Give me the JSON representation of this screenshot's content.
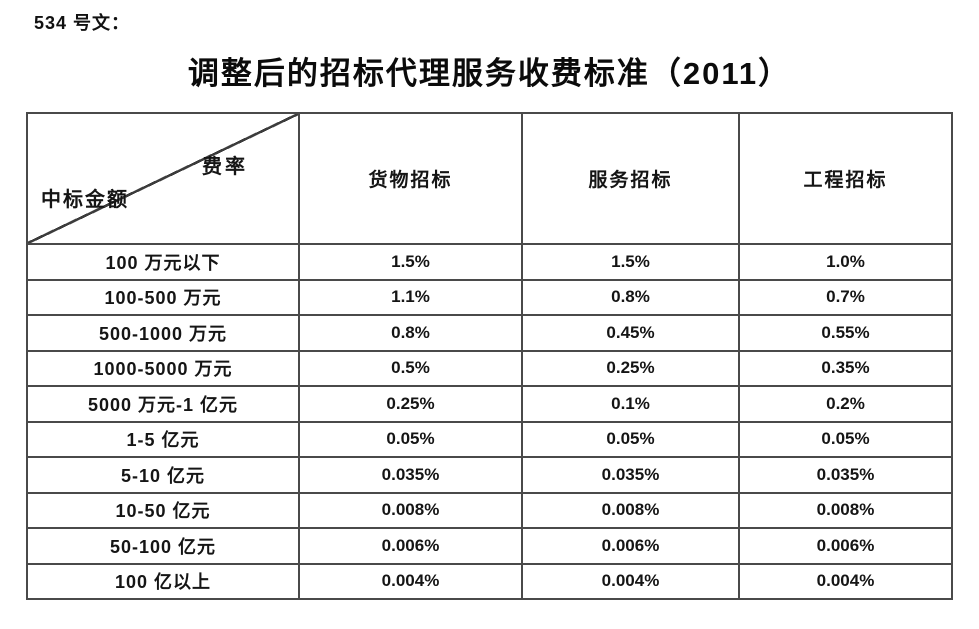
{
  "doc_label": "534 号文：",
  "title": "调整后的招标代理服务收费标准（2011）",
  "table": {
    "corner_top_right": "费率",
    "corner_bottom_left": "中标金额",
    "columns": [
      "货物招标",
      "服务招标",
      "工程招标"
    ],
    "rows": [
      {
        "label": "100 万元以下",
        "values": [
          "1.5%",
          "1.5%",
          "1.0%"
        ]
      },
      {
        "label": "100-500 万元",
        "values": [
          "1.1%",
          "0.8%",
          "0.7%"
        ]
      },
      {
        "label": "500-1000 万元",
        "values": [
          "0.8%",
          "0.45%",
          "0.55%"
        ]
      },
      {
        "label": "1000-5000 万元",
        "values": [
          "0.5%",
          "0.25%",
          "0.35%"
        ]
      },
      {
        "label": "5000 万元-1 亿元",
        "values": [
          "0.25%",
          "0.1%",
          "0.2%"
        ]
      },
      {
        "label": "1-5 亿元",
        "values": [
          "0.05%",
          "0.05%",
          "0.05%"
        ]
      },
      {
        "label": "5-10 亿元",
        "values": [
          "0.035%",
          "0.035%",
          "0.035%"
        ]
      },
      {
        "label": "10-50 亿元",
        "values": [
          "0.008%",
          "0.008%",
          "0.008%"
        ]
      },
      {
        "label": "50-100 亿元",
        "values": [
          "0.006%",
          "0.006%",
          "0.006%"
        ]
      },
      {
        "label": "100 亿以上",
        "values": [
          "0.004%",
          "0.004%",
          "0.004%"
        ]
      }
    ]
  },
  "colors": {
    "background": "#ffffff",
    "text": "#111111",
    "border": "#4a4a4a"
  }
}
